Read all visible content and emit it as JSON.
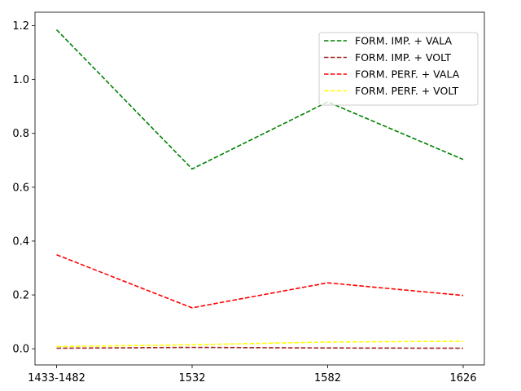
{
  "chart_data": {
    "type": "line",
    "title": "",
    "xlabel": "",
    "ylabel": "",
    "categories": [
      "1433-1482",
      "1532",
      "1582",
      "1626"
    ],
    "ylim": [
      -0.06,
      1.25
    ],
    "yticks": [
      "0.0",
      "0.2",
      "0.4",
      "0.6",
      "0.8",
      "1.0",
      "1.2"
    ],
    "ytick_values": [
      0.0,
      0.2,
      0.4,
      0.6,
      0.8,
      1.0,
      1.2
    ],
    "grid": false,
    "legend_position": "top-right",
    "series": [
      {
        "name": "FORM. IMP. + VALA",
        "color": "#008000",
        "style": "dashed",
        "values": [
          1.185,
          0.668,
          0.917,
          0.703
        ]
      },
      {
        "name": "FORM. IMP. + VOLT",
        "color": "#a52a2a",
        "style": "dashed",
        "values": [
          0.002,
          0.005,
          0.003,
          0.002
        ]
      },
      {
        "name": "FORM. PERF. + VALA",
        "color": "#ff0000",
        "style": "dashed",
        "values": [
          0.349,
          0.152,
          0.245,
          0.198
        ]
      },
      {
        "name": "FORM. PERF. + VOLT",
        "color": "#ffff00",
        "style": "dashed",
        "values": [
          0.008,
          0.015,
          0.025,
          0.028
        ]
      }
    ]
  }
}
